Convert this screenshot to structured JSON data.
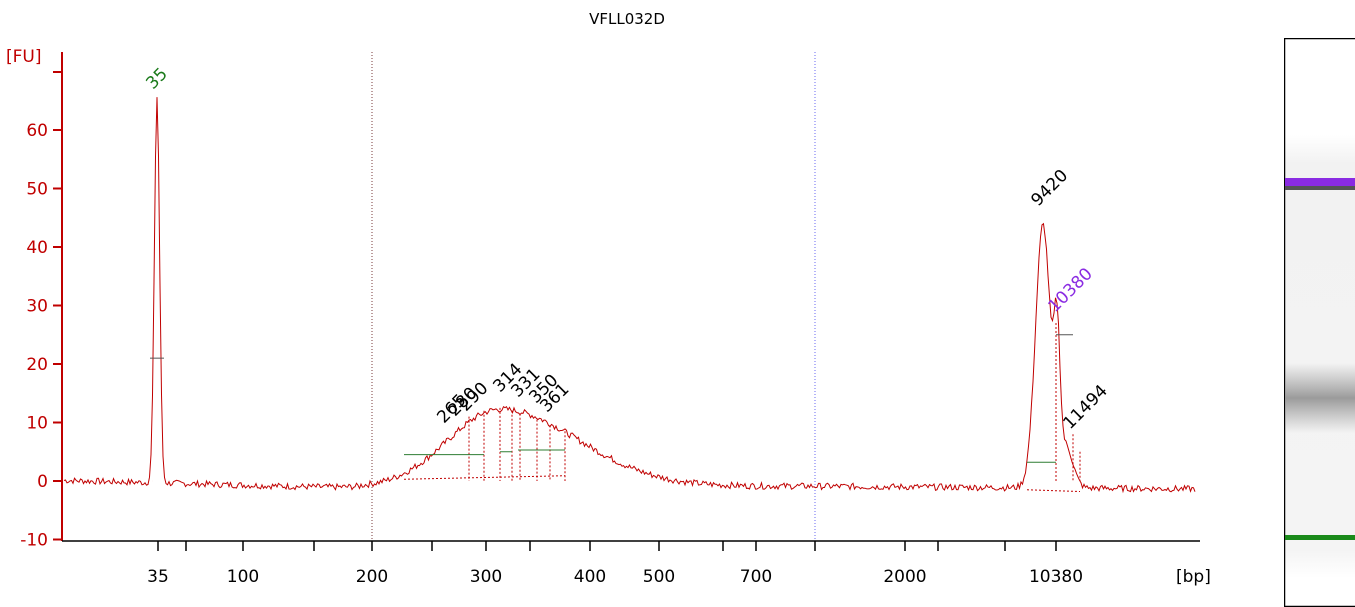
{
  "chart_data": {
    "type": "line",
    "title": "VFLL032D",
    "ylabel": "[FU]",
    "xlabel": "[bp]",
    "ylim": [
      -10,
      70
    ],
    "yticks": [
      -10,
      0,
      10,
      20,
      30,
      40,
      50,
      60
    ],
    "x_tick_labels": [
      "35",
      "100",
      "200",
      "300",
      "400",
      "500",
      "700",
      "2000",
      "10380"
    ],
    "colors": {
      "trace": "#c00000",
      "axis": "#c00000",
      "marker_label": "#1a7a1a",
      "upper_marker_label": "#8a2be2",
      "peak_label": "#000000",
      "baseline": "#2e7d32"
    },
    "peaks": [
      {
        "label": "35",
        "fu": 66,
        "color": "#1a7a1a"
      },
      {
        "label": "265",
        "fu": 11
      },
      {
        "label": "280",
        "fu": 11.5
      },
      {
        "label": "290",
        "fu": 12
      },
      {
        "label": "314",
        "fu": 12.5
      },
      {
        "label": "331",
        "fu": 11.5
      },
      {
        "label": "350",
        "fu": 10.5
      },
      {
        "label": "361",
        "fu": 9.5
      },
      {
        "label": "9420",
        "fu": 45
      },
      {
        "label": "10380",
        "fu": 27,
        "color": "#8a2be2"
      },
      {
        "label": "11494",
        "fu": 8
      }
    ]
  },
  "gel": {
    "bands": [
      {
        "name": "upper-marker",
        "color": "#8a2be2"
      },
      {
        "name": "sample-smear",
        "color": "#9a9a9a"
      },
      {
        "name": "lower-marker",
        "color": "#1a8a1a"
      }
    ]
  }
}
